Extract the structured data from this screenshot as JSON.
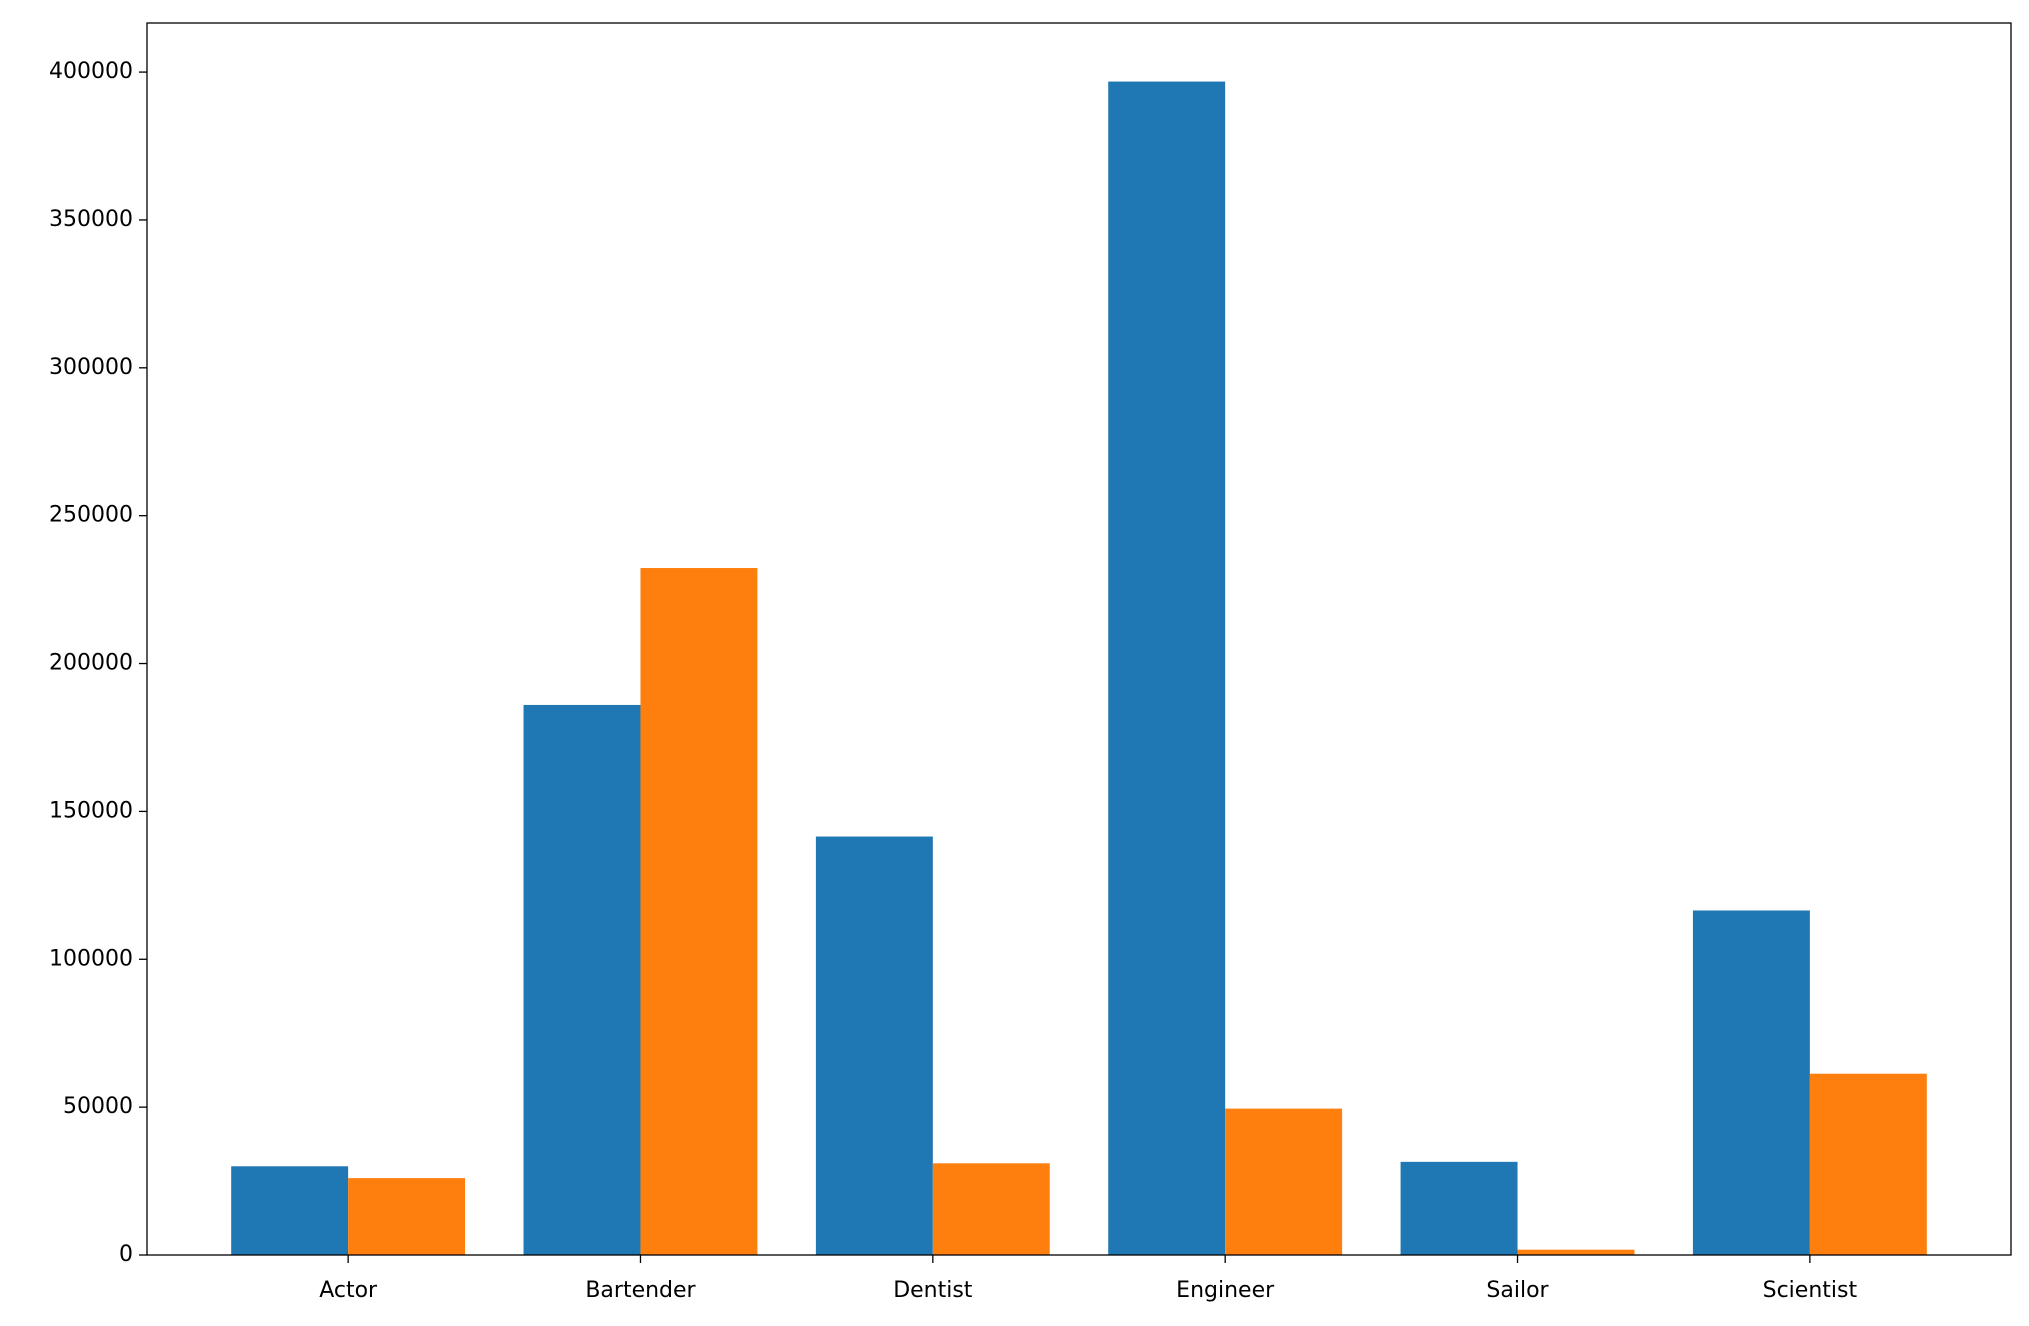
{
  "chart_data": {
    "type": "bar",
    "categories": [
      "Actor",
      "Bartender",
      "Dentist",
      "Engineer",
      "Sailor",
      "Scientist"
    ],
    "series": [
      {
        "color": "#1f77b4",
        "values": [
          30000,
          186000,
          141500,
          396800,
          31500,
          116500
        ]
      },
      {
        "color": "#ff7f0e",
        "values": [
          26000,
          232300,
          31000,
          49500,
          1800,
          61300
        ]
      }
    ],
    "ylim": [
      0,
      416600
    ],
    "yticks": [
      0,
      50000,
      100000,
      150000,
      200000,
      250000,
      300000,
      350000,
      400000
    ],
    "grid": false
  }
}
